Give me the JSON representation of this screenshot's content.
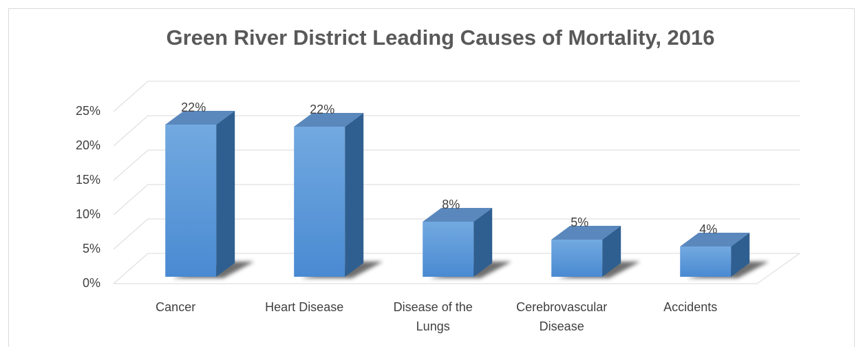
{
  "chart_data": {
    "type": "bar3d",
    "title": "Green River District Leading Causes of Mortality, 2016",
    "categories": [
      "Cancer",
      "Heart Disease",
      "Disease of the Lungs",
      "Cerebrovascular Disease",
      "Accidents"
    ],
    "values": [
      22.1,
      21.8,
      8,
      5.4,
      4.4
    ],
    "value_labels": [
      "22%",
      "22%",
      "8%",
      "5%",
      "4%"
    ],
    "color": "#4a90d9",
    "ylim": [
      0,
      25
    ],
    "yticks": [
      {
        "value": 0,
        "label": "0%"
      },
      {
        "value": 5,
        "label": "5%"
      },
      {
        "value": 10,
        "label": "10%"
      },
      {
        "value": 15,
        "label": "15%"
      },
      {
        "value": 20,
        "label": "20%"
      },
      {
        "value": 25,
        "label": "25%"
      }
    ],
    "grid": true
  }
}
